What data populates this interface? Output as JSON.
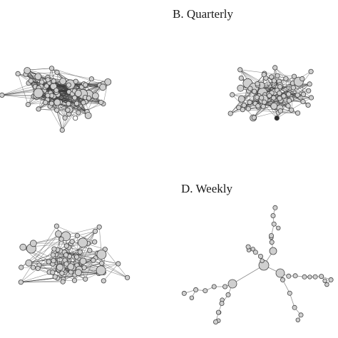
{
  "figure": {
    "panels": [
      {
        "id": "A",
        "title": "",
        "density": "very-high"
      },
      {
        "id": "B",
        "title": "B. Quarterly",
        "density": "high"
      },
      {
        "id": "C",
        "title": "",
        "density": "medium"
      },
      {
        "id": "D",
        "title": "D. Weekly",
        "density": "tree"
      }
    ],
    "node_fill_colors": {
      "default": "#cfcfcf",
      "dark": "#2b2b2b",
      "hollow": "#ffffff"
    },
    "edge_color": "#3a3a3a"
  }
}
